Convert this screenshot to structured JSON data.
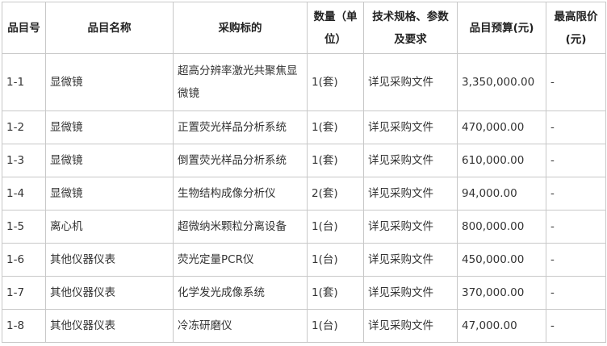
{
  "headers": [
    "品目号",
    "品目名称",
    "采购标的",
    "数量（单位）",
    "技术规格、参数及要求",
    "品目预算(元)",
    "最高限价(元)"
  ],
  "rows": [
    [
      "1-1",
      "显微镜",
      "超高分辨率激光共聚焦显微镜",
      "1(套)",
      "详见采购文件",
      "3,350,000.00",
      "-"
    ],
    [
      "1-2",
      "显微镜",
      "正置荧光样品分析系统",
      "1(套)",
      "详见采购文件",
      "470,000.00",
      "-"
    ],
    [
      "1-3",
      "显微镜",
      "倒置荧光样品分析系统",
      "1(套)",
      "详见采购文件",
      "610,000.00",
      "-"
    ],
    [
      "1-4",
      "显微镜",
      "生物结构成像分析仪",
      "2(套)",
      "详见采购文件",
      "94,000.00",
      "-"
    ],
    [
      "1-5",
      "离心机",
      "超微纳米颗粒分离设备",
      "1(台)",
      "详见采购文件",
      "800,000.00",
      "-"
    ],
    [
      "1-6",
      "其他仪器仪表",
      "荧光定量PCR仪",
      "1(台)",
      "详见采购文件",
      "450,000.00",
      "-"
    ],
    [
      "1-7",
      "其他仪器仪表",
      "化学发光成像系统",
      "1(套)",
      "详见采购文件",
      "370,000.00",
      "-"
    ],
    [
      "1-8",
      "其他仪器仪表",
      "冷冻研磨仪",
      "1(台)",
      "详见采购文件",
      "47,000.00",
      "-"
    ]
  ]
}
